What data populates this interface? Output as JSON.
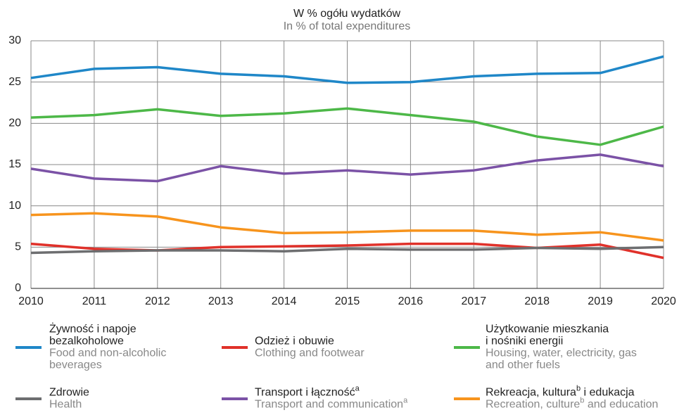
{
  "chart_data": {
    "type": "line",
    "title": "W % ogółu wydatków",
    "subtitle": "In % of total expenditures",
    "x": [
      2010,
      2011,
      2012,
      2013,
      2014,
      2015,
      2016,
      2017,
      2018,
      2019,
      2020
    ],
    "xlim": [
      2010,
      2020
    ],
    "xticks": [
      2010,
      2011,
      2012,
      2013,
      2014,
      2015,
      2016,
      2017,
      2018,
      2019,
      2020
    ],
    "ylim": [
      0,
      30
    ],
    "yticks": [
      0,
      5,
      10,
      15,
      20,
      25,
      30
    ],
    "grid": true,
    "series": [
      {
        "name": [
          [
            "Żywność i napoje"
          ],
          [
            "bezalkoholowe"
          ]
        ],
        "name_en": [
          [
            "Food and non-alcoholic"
          ],
          [
            "beverages"
          ]
        ],
        "color": "#1f87c8",
        "values": [
          25.5,
          26.6,
          26.8,
          26.0,
          25.7,
          24.9,
          25.0,
          25.7,
          26.0,
          26.1,
          28.1
        ]
      },
      {
        "name": [
          [
            "Odzież i obuwie"
          ]
        ],
        "name_en": [
          [
            "Clothing and footwear"
          ]
        ],
        "color": "#e0312a",
        "values": [
          5.4,
          4.8,
          4.6,
          5.0,
          5.1,
          5.2,
          5.4,
          5.4,
          4.9,
          5.3,
          3.7
        ]
      },
      {
        "name": [
          [
            "Użytkowanie mieszkania"
          ],
          [
            "i nośniki energii"
          ]
        ],
        "name_en": [
          [
            "Housing, water, electricity, gas"
          ],
          [
            "and other fuels"
          ]
        ],
        "color": "#4db848",
        "values": [
          20.7,
          21.0,
          21.7,
          20.9,
          21.2,
          21.8,
          21.0,
          20.2,
          18.4,
          17.4,
          19.6
        ]
      },
      {
        "name": [
          [
            "Zdrowie"
          ]
        ],
        "name_en": [
          [
            "Health"
          ]
        ],
        "color": "#6d6e70",
        "values": [
          4.3,
          4.5,
          4.6,
          4.6,
          4.5,
          4.8,
          4.7,
          4.7,
          4.9,
          4.8,
          5.0
        ]
      },
      {
        "name": [
          [
            "Transport i łączność",
            "a"
          ]
        ],
        "name_en": [
          [
            "Transport and communication",
            "a"
          ]
        ],
        "color": "#7b52a6",
        "values": [
          14.5,
          13.3,
          13.0,
          14.8,
          13.9,
          14.3,
          13.8,
          14.3,
          15.5,
          16.2,
          14.8
        ]
      },
      {
        "name": [
          [
            "Rekreacja, kultura",
            "b",
            " i edukacja"
          ]
        ],
        "name_en": [
          [
            "Recreation, culture",
            "b",
            " and education"
          ]
        ],
        "color": "#f7941d",
        "values": [
          8.9,
          9.1,
          8.7,
          7.4,
          6.7,
          6.8,
          7.0,
          7.0,
          6.5,
          6.8,
          5.8
        ]
      }
    ]
  }
}
